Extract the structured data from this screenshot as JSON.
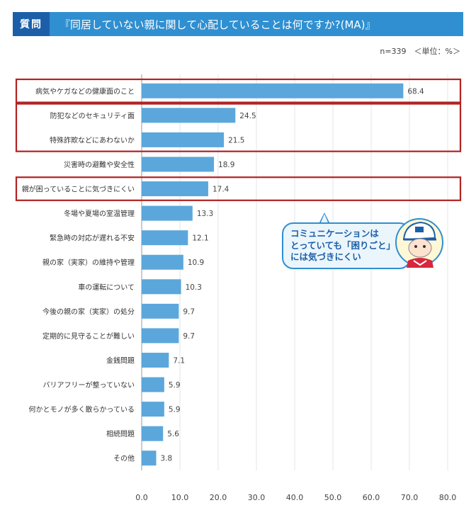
{
  "header": {
    "tag": "質問",
    "question": "『同居していない親に関して心配していることは何ですか?(MA)』"
  },
  "note": "n=339　＜単位：%＞",
  "callout": {
    "lines": [
      "コミュニケーションは",
      "とっていても「困りごと」",
      "には気づきにくい"
    ]
  },
  "colors": {
    "bar": "#5ba7dc",
    "highlight": "#b22222",
    "header": "#2f8fd0",
    "tag": "#1c5fa8"
  },
  "chart_data": {
    "type": "bar",
    "orientation": "horizontal",
    "categories": [
      "病気やケガなどの健康面のこと",
      "防犯などのセキュリティ面",
      "特殊詐欺などにあわないか",
      "災害時の避難や安全性",
      "親が困っていることに気づきにくい",
      "冬場や夏場の室温管理",
      "緊急時の対応が遅れる不安",
      "親の家（実家）の維持や管理",
      "車の運転について",
      "今後の親の家（実家）の処分",
      "定期的に見守ることが難しい",
      "金銭問題",
      "バリアフリーが整っていない",
      "何かとモノが多く散らかっている",
      "相続問題",
      "その他"
    ],
    "values": [
      68.4,
      24.5,
      21.5,
      18.9,
      17.4,
      13.3,
      12.1,
      10.9,
      10.3,
      9.7,
      9.7,
      7.1,
      5.9,
      5.9,
      5.6,
      3.8
    ],
    "value_labels": [
      "68.4",
      "24.5",
      "21.5",
      "18.9",
      "17.4",
      "13.3",
      "12.1",
      "10.9",
      "10.3",
      "9.7",
      "9.7",
      "7.1",
      "5.9",
      "5.9",
      "5.6",
      "3.8"
    ],
    "xlim": [
      0,
      80
    ],
    "xticks": [
      "0.0",
      "10.0",
      "20.0",
      "30.0",
      "40.0",
      "50.0",
      "60.0",
      "70.0",
      "80.0"
    ],
    "grid": true,
    "highlight_groups": [
      [
        0,
        0
      ],
      [
        1,
        2
      ],
      [
        4,
        4
      ]
    ]
  }
}
